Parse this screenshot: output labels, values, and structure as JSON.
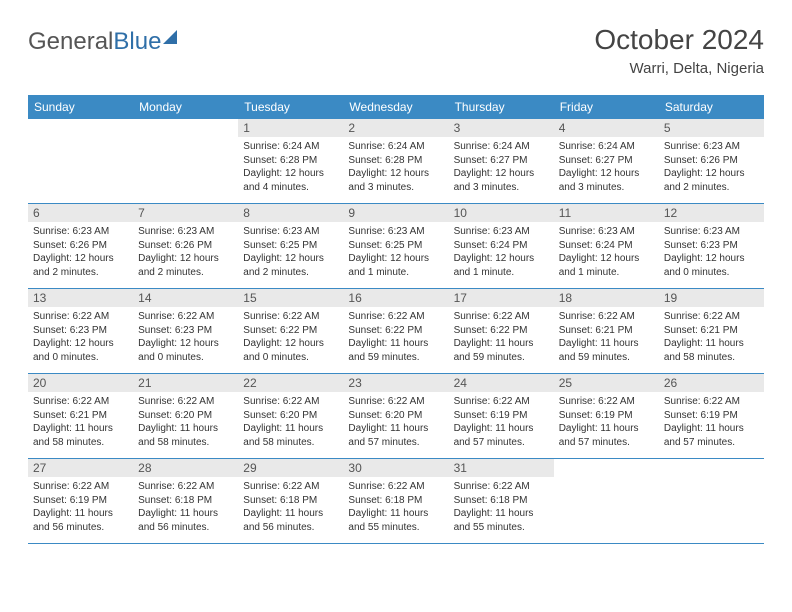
{
  "brand": {
    "part1": "General",
    "part2": "Blue"
  },
  "title": "October 2024",
  "location": "Warri, Delta, Nigeria",
  "weekdays": [
    "Sunday",
    "Monday",
    "Tuesday",
    "Wednesday",
    "Thursday",
    "Friday",
    "Saturday"
  ],
  "colors": {
    "header_bg": "#3b8ac4",
    "header_text": "#ffffff",
    "daynum_bg": "#e9e9e9",
    "border": "#3b8ac4",
    "brand_gray": "#555555",
    "brand_blue": "#2f6fa8"
  },
  "layout": {
    "start_weekday_index": 2,
    "days_in_month": 31
  },
  "days": {
    "1": {
      "sunrise": "6:24 AM",
      "sunset": "6:28 PM",
      "daylight": "12 hours and 4 minutes."
    },
    "2": {
      "sunrise": "6:24 AM",
      "sunset": "6:28 PM",
      "daylight": "12 hours and 3 minutes."
    },
    "3": {
      "sunrise": "6:24 AM",
      "sunset": "6:27 PM",
      "daylight": "12 hours and 3 minutes."
    },
    "4": {
      "sunrise": "6:24 AM",
      "sunset": "6:27 PM",
      "daylight": "12 hours and 3 minutes."
    },
    "5": {
      "sunrise": "6:23 AM",
      "sunset": "6:26 PM",
      "daylight": "12 hours and 2 minutes."
    },
    "6": {
      "sunrise": "6:23 AM",
      "sunset": "6:26 PM",
      "daylight": "12 hours and 2 minutes."
    },
    "7": {
      "sunrise": "6:23 AM",
      "sunset": "6:26 PM",
      "daylight": "12 hours and 2 minutes."
    },
    "8": {
      "sunrise": "6:23 AM",
      "sunset": "6:25 PM",
      "daylight": "12 hours and 2 minutes."
    },
    "9": {
      "sunrise": "6:23 AM",
      "sunset": "6:25 PM",
      "daylight": "12 hours and 1 minute."
    },
    "10": {
      "sunrise": "6:23 AM",
      "sunset": "6:24 PM",
      "daylight": "12 hours and 1 minute."
    },
    "11": {
      "sunrise": "6:23 AM",
      "sunset": "6:24 PM",
      "daylight": "12 hours and 1 minute."
    },
    "12": {
      "sunrise": "6:23 AM",
      "sunset": "6:23 PM",
      "daylight": "12 hours and 0 minutes."
    },
    "13": {
      "sunrise": "6:22 AM",
      "sunset": "6:23 PM",
      "daylight": "12 hours and 0 minutes."
    },
    "14": {
      "sunrise": "6:22 AM",
      "sunset": "6:23 PM",
      "daylight": "12 hours and 0 minutes."
    },
    "15": {
      "sunrise": "6:22 AM",
      "sunset": "6:22 PM",
      "daylight": "12 hours and 0 minutes."
    },
    "16": {
      "sunrise": "6:22 AM",
      "sunset": "6:22 PM",
      "daylight": "11 hours and 59 minutes."
    },
    "17": {
      "sunrise": "6:22 AM",
      "sunset": "6:22 PM",
      "daylight": "11 hours and 59 minutes."
    },
    "18": {
      "sunrise": "6:22 AM",
      "sunset": "6:21 PM",
      "daylight": "11 hours and 59 minutes."
    },
    "19": {
      "sunrise": "6:22 AM",
      "sunset": "6:21 PM",
      "daylight": "11 hours and 58 minutes."
    },
    "20": {
      "sunrise": "6:22 AM",
      "sunset": "6:21 PM",
      "daylight": "11 hours and 58 minutes."
    },
    "21": {
      "sunrise": "6:22 AM",
      "sunset": "6:20 PM",
      "daylight": "11 hours and 58 minutes."
    },
    "22": {
      "sunrise": "6:22 AM",
      "sunset": "6:20 PM",
      "daylight": "11 hours and 58 minutes."
    },
    "23": {
      "sunrise": "6:22 AM",
      "sunset": "6:20 PM",
      "daylight": "11 hours and 57 minutes."
    },
    "24": {
      "sunrise": "6:22 AM",
      "sunset": "6:19 PM",
      "daylight": "11 hours and 57 minutes."
    },
    "25": {
      "sunrise": "6:22 AM",
      "sunset": "6:19 PM",
      "daylight": "11 hours and 57 minutes."
    },
    "26": {
      "sunrise": "6:22 AM",
      "sunset": "6:19 PM",
      "daylight": "11 hours and 57 minutes."
    },
    "27": {
      "sunrise": "6:22 AM",
      "sunset": "6:19 PM",
      "daylight": "11 hours and 56 minutes."
    },
    "28": {
      "sunrise": "6:22 AM",
      "sunset": "6:18 PM",
      "daylight": "11 hours and 56 minutes."
    },
    "29": {
      "sunrise": "6:22 AM",
      "sunset": "6:18 PM",
      "daylight": "11 hours and 56 minutes."
    },
    "30": {
      "sunrise": "6:22 AM",
      "sunset": "6:18 PM",
      "daylight": "11 hours and 55 minutes."
    },
    "31": {
      "sunrise": "6:22 AM",
      "sunset": "6:18 PM",
      "daylight": "11 hours and 55 minutes."
    }
  },
  "labels": {
    "sunrise_prefix": "Sunrise: ",
    "sunset_prefix": "Sunset: ",
    "daylight_prefix": "Daylight: "
  }
}
